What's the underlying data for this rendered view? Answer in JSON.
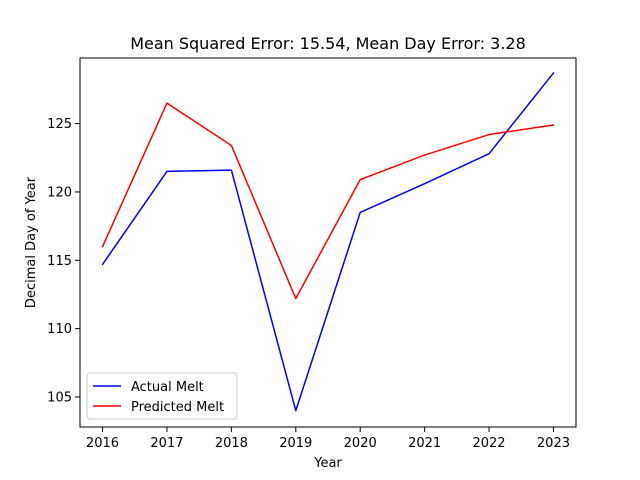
{
  "chart_data": {
    "type": "line",
    "title": "Mean Squared Error: 15.54, Mean Day Error: 3.28",
    "xlabel": "Year",
    "ylabel": "Decimal Day of Year",
    "x": [
      2016,
      2017,
      2018,
      2019,
      2020,
      2021,
      2022,
      2023
    ],
    "x_ticks": [
      "2016",
      "2017",
      "2018",
      "2019",
      "2020",
      "2021",
      "2022",
      "2023"
    ],
    "y_ticks": [
      "105",
      "110",
      "115",
      "120",
      "125"
    ],
    "y_tick_values": [
      105,
      110,
      115,
      120,
      125
    ],
    "xlim": [
      2015.65,
      2023.35
    ],
    "ylim": [
      102.8,
      129.8
    ],
    "grid": false,
    "legend_position": "lower-left",
    "series": [
      {
        "name": "Actual Melt",
        "color": "#0000ff",
        "values": [
          114.7,
          121.5,
          121.6,
          104.0,
          118.5,
          120.6,
          122.8,
          128.7
        ]
      },
      {
        "name": "Predicted Melt",
        "color": "#ff0000",
        "values": [
          116.0,
          126.5,
          123.4,
          112.2,
          120.9,
          122.7,
          124.2,
          124.9
        ]
      }
    ]
  }
}
